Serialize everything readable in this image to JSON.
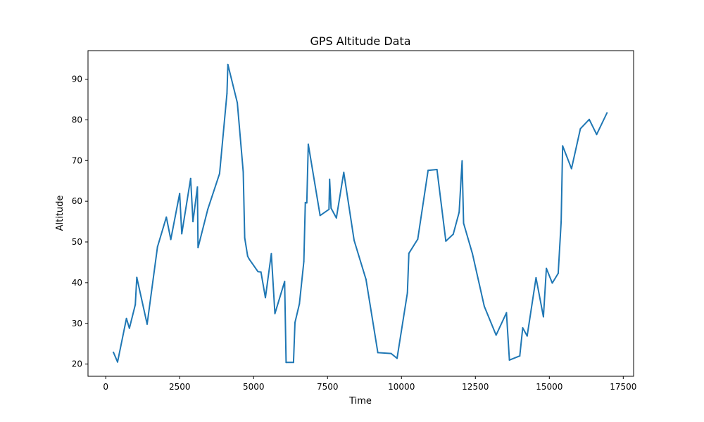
{
  "chart_data": {
    "type": "line",
    "title": "GPS Altitude Data",
    "xlabel": "Time",
    "ylabel": "Altitude",
    "xlim": [
      -600,
      17850
    ],
    "ylim": [
      17,
      97
    ],
    "xticks": [
      0,
      2500,
      5000,
      7500,
      10000,
      12500,
      15000,
      17500
    ],
    "yticks": [
      20,
      30,
      40,
      50,
      60,
      70,
      80,
      90
    ],
    "grid": false,
    "color": "#1f77b4",
    "x": [
      260,
      400,
      700,
      800,
      1000,
      1050,
      1400,
      1750,
      2050,
      2200,
      2500,
      2570,
      2870,
      2950,
      3100,
      3120,
      3450,
      3850,
      4100,
      4130,
      4450,
      4650,
      4700,
      4800,
      4850,
      5150,
      5250,
      5400,
      5600,
      5720,
      6050,
      6100,
      6350,
      6400,
      6550,
      6700,
      6750,
      6800,
      6850,
      7250,
      7550,
      7570,
      7620,
      7800,
      8050,
      8400,
      8800,
      9200,
      9650,
      9850,
      10200,
      10250,
      10550,
      10900,
      11200,
      11500,
      11750,
      11950,
      12050,
      12100,
      12400,
      12800,
      13200,
      13550,
      13650,
      14000,
      14100,
      14250,
      14550,
      14800,
      14900,
      15100,
      15300,
      15400,
      15450,
      15750,
      16050,
      16350,
      16600,
      16950
    ],
    "values": [
      22.9,
      20.5,
      31.2,
      28.8,
      34.6,
      41.3,
      29.8,
      48.8,
      56.1,
      50.6,
      61.9,
      52.0,
      65.6,
      55.0,
      63.5,
      48.6,
      58.0,
      66.8,
      86.5,
      93.6,
      84.2,
      67.2,
      51.0,
      46.5,
      45.8,
      42.7,
      42.6,
      36.3,
      47.1,
      32.4,
      40.3,
      20.4,
      20.4,
      30.2,
      34.8,
      45.2,
      59.7,
      59.6,
      74.0,
      56.5,
      58.0,
      65.4,
      58.3,
      55.9,
      67.1,
      50.4,
      40.8,
      22.8,
      22.6,
      21.4,
      37.5,
      47.2,
      50.7,
      67.6,
      67.8,
      50.2,
      51.9,
      57.3,
      69.9,
      54.6,
      47.1,
      34.2,
      27.1,
      32.6,
      21.0,
      22.0,
      28.9,
      26.9,
      41.2,
      31.6,
      43.5,
      39.9,
      42.3,
      55.0,
      73.6,
      68.0,
      77.8,
      80.1,
      76.4,
      81.7
    ]
  }
}
